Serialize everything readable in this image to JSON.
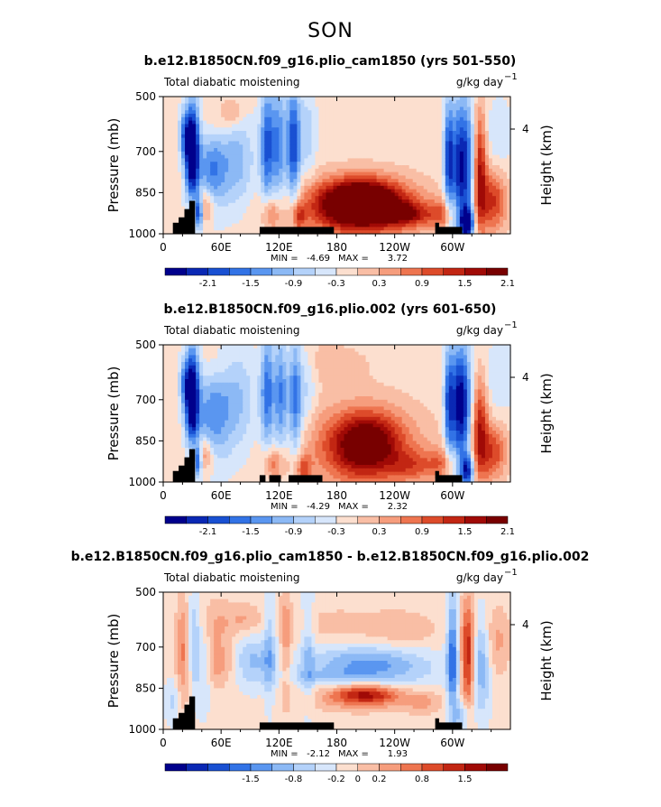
{
  "figure": {
    "season": "SON"
  },
  "chart_data": [
    {
      "type": "heatmap",
      "title": "b.e12.B1850CN.f09_g16.plio_cam1850 (yrs 501-550)",
      "left_label": "Total diabatic moistening",
      "units": "g/kg day",
      "units_exp": "−1",
      "ylabel": "Pressure (mb)",
      "ylabel_right": "Height (km)",
      "x_ticks": [
        "0",
        "60E",
        "120E",
        "180",
        "120W",
        "60W"
      ],
      "x_tick_values": [
        0,
        60,
        120,
        180,
        240,
        300
      ],
      "xlim": [
        0,
        360
      ],
      "y_ticks": [
        "500",
        "700",
        "850",
        "1000"
      ],
      "y_tick_values": [
        500,
        700,
        850,
        1000
      ],
      "ylim": [
        1000,
        500
      ],
      "right_ticks": [
        "4"
      ],
      "stats": {
        "min_label": "MIN =",
        "min": "-4.69",
        "max_label": "MAX =",
        "max": "3.72"
      },
      "colorbar": {
        "labels": [
          "-2.1",
          "-1.5",
          "-0.9",
          "-0.3",
          "0.3",
          "0.9",
          "1.5",
          "2.1"
        ]
      },
      "features": [
        {
          "x": 30,
          "p": 700,
          "sx": 5,
          "sp": 120,
          "v": -3.2
        },
        {
          "x": 22,
          "p": 640,
          "sx": 4,
          "sp": 60,
          "v": -1.2
        },
        {
          "x": 50,
          "p": 770,
          "sx": 10,
          "sp": 110,
          "v": -1.2
        },
        {
          "x": 42,
          "p": 900,
          "sx": 8,
          "sp": 45,
          "v": 1.2
        },
        {
          "x": 37,
          "p": 920,
          "sx": 3,
          "sp": 40,
          "v": -2.3
        },
        {
          "x": 75,
          "p": 740,
          "sx": 14,
          "sp": 120,
          "v": -0.9
        },
        {
          "x": 108,
          "p": 680,
          "sx": 5,
          "sp": 150,
          "v": -1.7
        },
        {
          "x": 120,
          "p": 680,
          "sx": 5,
          "sp": 150,
          "v": -1.3
        },
        {
          "x": 135,
          "p": 680,
          "sx": 5,
          "sp": 160,
          "v": -1.9
        },
        {
          "x": 150,
          "p": 640,
          "sx": 6,
          "sp": 120,
          "v": -0.6
        },
        {
          "x": 112,
          "p": 930,
          "sx": 6,
          "sp": 40,
          "v": 0.9
        },
        {
          "x": 140,
          "p": 940,
          "sx": 5,
          "sp": 35,
          "v": 1.1
        },
        {
          "x": 205,
          "p": 890,
          "sx": 30,
          "sp": 60,
          "v": 3.1
        },
        {
          "x": 200,
          "p": 910,
          "sx": 55,
          "sp": 85,
          "v": 0.9
        },
        {
          "x": 255,
          "p": 930,
          "sx": 18,
          "sp": 30,
          "v": 1.2
        },
        {
          "x": 72,
          "p": 560,
          "sx": 8,
          "sp": 40,
          "v": 0.6
        },
        {
          "x": 55,
          "p": 600,
          "sx": 10,
          "sp": 60,
          "v": 0.4
        },
        {
          "x": 310,
          "p": 760,
          "sx": 9,
          "sp": 170,
          "v": -2.4
        },
        {
          "x": 296,
          "p": 720,
          "sx": 3,
          "sp": 140,
          "v": -1.5
        },
        {
          "x": 328,
          "p": 770,
          "sx": 5,
          "sp": 160,
          "v": 1.9
        },
        {
          "x": 342,
          "p": 880,
          "sx": 10,
          "sp": 80,
          "v": 1.4
        },
        {
          "x": 315,
          "p": 960,
          "sx": 5,
          "sp": 40,
          "v": -2.4
        },
        {
          "x": 290,
          "p": 930,
          "sx": 10,
          "sp": 40,
          "v": 0.8
        },
        {
          "x": 348,
          "p": 640,
          "sx": 10,
          "sp": 90,
          "v": -0.4
        }
      ],
      "topography": [
        [
          0,
          1000
        ],
        [
          0,
          1000
        ],
        [
          10,
          1000
        ],
        [
          10,
          960
        ],
        [
          16,
          960
        ],
        [
          16,
          940
        ],
        [
          22,
          940
        ],
        [
          22,
          910
        ],
        [
          27,
          910
        ],
        [
          27,
          880
        ],
        [
          33,
          880
        ],
        [
          33,
          1000
        ],
        [
          100,
          1000
        ],
        [
          100,
          975
        ],
        [
          177,
          975
        ],
        [
          177,
          1000
        ],
        [
          282,
          1000
        ],
        [
          282,
          960
        ],
        [
          286,
          960
        ],
        [
          286,
          975
        ],
        [
          310,
          975
        ],
        [
          310,
          1000
        ]
      ]
    },
    {
      "type": "heatmap",
      "title": "b.e12.B1850CN.f09_g16.plio.002 (yrs 601-650)",
      "left_label": "Total diabatic moistening",
      "units": "g/kg day",
      "units_exp": "−1",
      "ylabel": "Pressure (mb)",
      "ylabel_right": "Height (km)",
      "x_ticks": [
        "0",
        "60E",
        "120E",
        "180",
        "120W",
        "60W"
      ],
      "x_tick_values": [
        0,
        60,
        120,
        180,
        240,
        300
      ],
      "xlim": [
        0,
        360
      ],
      "y_ticks": [
        "500",
        "700",
        "850",
        "1000"
      ],
      "y_tick_values": [
        500,
        700,
        850,
        1000
      ],
      "ylim": [
        1000,
        500
      ],
      "right_ticks": [
        "4"
      ],
      "stats": {
        "min_label": "MIN =",
        "min": "-4.29",
        "max_label": "MAX =",
        "max": "2.32"
      },
      "colorbar": {
        "labels": [
          "-2.1",
          "-1.5",
          "-0.9",
          "-0.3",
          "0.3",
          "0.9",
          "1.5",
          "2.1"
        ]
      },
      "features": [
        {
          "x": 30,
          "p": 690,
          "sx": 5,
          "sp": 120,
          "v": -3.0
        },
        {
          "x": 22,
          "p": 640,
          "sx": 4,
          "sp": 60,
          "v": -1.0
        },
        {
          "x": 50,
          "p": 760,
          "sx": 12,
          "sp": 120,
          "v": -1.1
        },
        {
          "x": 40,
          "p": 900,
          "sx": 8,
          "sp": 45,
          "v": 1.2
        },
        {
          "x": 36,
          "p": 920,
          "sx": 3,
          "sp": 40,
          "v": -2.0
        },
        {
          "x": 75,
          "p": 700,
          "sx": 15,
          "sp": 140,
          "v": -0.8
        },
        {
          "x": 108,
          "p": 670,
          "sx": 5,
          "sp": 160,
          "v": -1.5
        },
        {
          "x": 122,
          "p": 680,
          "sx": 5,
          "sp": 160,
          "v": -1.4
        },
        {
          "x": 137,
          "p": 690,
          "sx": 5,
          "sp": 160,
          "v": -1.6
        },
        {
          "x": 150,
          "p": 650,
          "sx": 6,
          "sp": 120,
          "v": -0.5
        },
        {
          "x": 115,
          "p": 930,
          "sx": 8,
          "sp": 40,
          "v": 1.0
        },
        {
          "x": 145,
          "p": 950,
          "sx": 6,
          "sp": 35,
          "v": 1.0
        },
        {
          "x": 210,
          "p": 860,
          "sx": 25,
          "sp": 80,
          "v": 1.9
        },
        {
          "x": 205,
          "p": 880,
          "sx": 50,
          "sp": 120,
          "v": 0.9
        },
        {
          "x": 260,
          "p": 940,
          "sx": 18,
          "sp": 40,
          "v": 0.8
        },
        {
          "x": 55,
          "p": 580,
          "sx": 12,
          "sp": 60,
          "v": 0.3
        },
        {
          "x": 308,
          "p": 720,
          "sx": 8,
          "sp": 150,
          "v": -2.6
        },
        {
          "x": 296,
          "p": 720,
          "sx": 3,
          "sp": 140,
          "v": -1.3
        },
        {
          "x": 328,
          "p": 800,
          "sx": 6,
          "sp": 140,
          "v": 1.6
        },
        {
          "x": 342,
          "p": 890,
          "sx": 10,
          "sp": 70,
          "v": 1.3
        },
        {
          "x": 315,
          "p": 960,
          "sx": 5,
          "sp": 40,
          "v": -2.0
        },
        {
          "x": 290,
          "p": 930,
          "sx": 10,
          "sp": 40,
          "v": 0.7
        },
        {
          "x": 348,
          "p": 620,
          "sx": 12,
          "sp": 90,
          "v": -0.4
        },
        {
          "x": 165,
          "p": 560,
          "sx": 40,
          "sp": 60,
          "v": 0.3
        }
      ],
      "topography": [
        [
          0,
          1000
        ],
        [
          0,
          1000
        ],
        [
          10,
          1000
        ],
        [
          10,
          960
        ],
        [
          16,
          960
        ],
        [
          16,
          940
        ],
        [
          22,
          940
        ],
        [
          22,
          910
        ],
        [
          27,
          910
        ],
        [
          27,
          880
        ],
        [
          33,
          880
        ],
        [
          33,
          1000
        ],
        [
          100,
          1000
        ],
        [
          100,
          975
        ],
        [
          106,
          975
        ],
        [
          106,
          1000
        ],
        [
          110,
          1000
        ],
        [
          110,
          975
        ],
        [
          122,
          975
        ],
        [
          122,
          1000
        ],
        [
          130,
          1000
        ],
        [
          130,
          975
        ],
        [
          165,
          975
        ],
        [
          165,
          1000
        ],
        [
          282,
          1000
        ],
        [
          282,
          960
        ],
        [
          286,
          960
        ],
        [
          286,
          975
        ],
        [
          310,
          975
        ],
        [
          310,
          1000
        ]
      ]
    },
    {
      "type": "heatmap",
      "title": "b.e12.B1850CN.f09_g16.plio_cam1850 - b.e12.B1850CN.f09_g16.plio.002",
      "left_label": "Total diabatic moistening",
      "units": "g/kg day",
      "units_exp": "−1",
      "ylabel": "Pressure (mb)",
      "ylabel_right": "Height (km)",
      "x_ticks": [
        "0",
        "60E",
        "120E",
        "180",
        "120W",
        "60W"
      ],
      "x_tick_values": [
        0,
        60,
        120,
        180,
        240,
        300
      ],
      "xlim": [
        0,
        360
      ],
      "y_ticks": [
        "500",
        "700",
        "850",
        "1000"
      ],
      "y_tick_values": [
        500,
        700,
        850,
        1000
      ],
      "ylim": [
        1000,
        500
      ],
      "right_ticks": [
        "4"
      ],
      "stats": {
        "min_label": "MIN =",
        "min": "-2.12",
        "max_label": "MAX =",
        "max": "1.93"
      },
      "colorbar": {
        "labels": [
          "-1.5",
          "-0.8",
          "-0.2",
          "0",
          "0.2",
          "0.8",
          "1.5"
        ]
      },
      "features": [
        {
          "x": 20,
          "p": 720,
          "sx": 5,
          "sp": 140,
          "v": 0.8
        },
        {
          "x": 32,
          "p": 680,
          "sx": 4,
          "sp": 130,
          "v": -0.8
        },
        {
          "x": 42,
          "p": 760,
          "sx": 5,
          "sp": 120,
          "v": -0.6
        },
        {
          "x": 55,
          "p": 620,
          "sx": 14,
          "sp": 70,
          "v": 0.5
        },
        {
          "x": 85,
          "p": 600,
          "sx": 12,
          "sp": 40,
          "v": 0.5
        },
        {
          "x": 90,
          "p": 750,
          "sx": 20,
          "sp": 70,
          "v": -0.8
        },
        {
          "x": 60,
          "p": 760,
          "sx": 14,
          "sp": 60,
          "v": 0.8
        },
        {
          "x": 110,
          "p": 700,
          "sx": 4,
          "sp": 150,
          "v": -0.6
        },
        {
          "x": 127,
          "p": 680,
          "sx": 4,
          "sp": 150,
          "v": 0.7
        },
        {
          "x": 150,
          "p": 700,
          "sx": 5,
          "sp": 160,
          "v": -0.6
        },
        {
          "x": 200,
          "p": 760,
          "sx": 40,
          "sp": 45,
          "v": -0.8
        },
        {
          "x": 210,
          "p": 870,
          "sx": 25,
          "sp": 25,
          "v": 1.6
        },
        {
          "x": 205,
          "p": 900,
          "sx": 40,
          "sp": 30,
          "v": 0.5
        },
        {
          "x": 170,
          "p": 810,
          "sx": 30,
          "sp": 20,
          "v": -0.4
        },
        {
          "x": 180,
          "p": 620,
          "sx": 40,
          "sp": 50,
          "v": 0.3
        },
        {
          "x": 250,
          "p": 640,
          "sx": 25,
          "sp": 50,
          "v": 0.4
        },
        {
          "x": 240,
          "p": 780,
          "sx": 40,
          "sp": 60,
          "v": -0.5
        },
        {
          "x": 300,
          "p": 740,
          "sx": 4,
          "sp": 160,
          "v": -1.5
        },
        {
          "x": 316,
          "p": 730,
          "sx": 5,
          "sp": 140,
          "v": 1.7
        },
        {
          "x": 330,
          "p": 760,
          "sx": 7,
          "sp": 130,
          "v": -1.0
        },
        {
          "x": 345,
          "p": 680,
          "sx": 10,
          "sp": 90,
          "v": 0.6
        },
        {
          "x": 310,
          "p": 950,
          "sx": 6,
          "sp": 40,
          "v": -0.8
        },
        {
          "x": 270,
          "p": 900,
          "sx": 15,
          "sp": 30,
          "v": 0.5
        },
        {
          "x": 10,
          "p": 900,
          "sx": 6,
          "sp": 60,
          "v": -0.5
        }
      ],
      "topography": [
        [
          0,
          1000
        ],
        [
          0,
          1000
        ],
        [
          10,
          1000
        ],
        [
          10,
          960
        ],
        [
          16,
          960
        ],
        [
          16,
          940
        ],
        [
          22,
          940
        ],
        [
          22,
          910
        ],
        [
          27,
          910
        ],
        [
          27,
          880
        ],
        [
          33,
          880
        ],
        [
          33,
          1000
        ],
        [
          100,
          1000
        ],
        [
          100,
          975
        ],
        [
          177,
          975
        ],
        [
          177,
          1000
        ],
        [
          282,
          1000
        ],
        [
          282,
          960
        ],
        [
          286,
          960
        ],
        [
          286,
          975
        ],
        [
          310,
          975
        ],
        [
          310,
          1000
        ]
      ]
    }
  ],
  "colors": {
    "palette": [
      "#00008c",
      "#0a28b4",
      "#1950d2",
      "#3273e6",
      "#5a96f0",
      "#8cb9f5",
      "#b4d2fa",
      "#d7e6fb",
      "#fcdfcf",
      "#f9bea5",
      "#f69d7d",
      "#ee7550",
      "#dd4b2a",
      "#c22613",
      "#a00a06",
      "#780000"
    ],
    "frame": "#000000",
    "topography": "#000000"
  }
}
